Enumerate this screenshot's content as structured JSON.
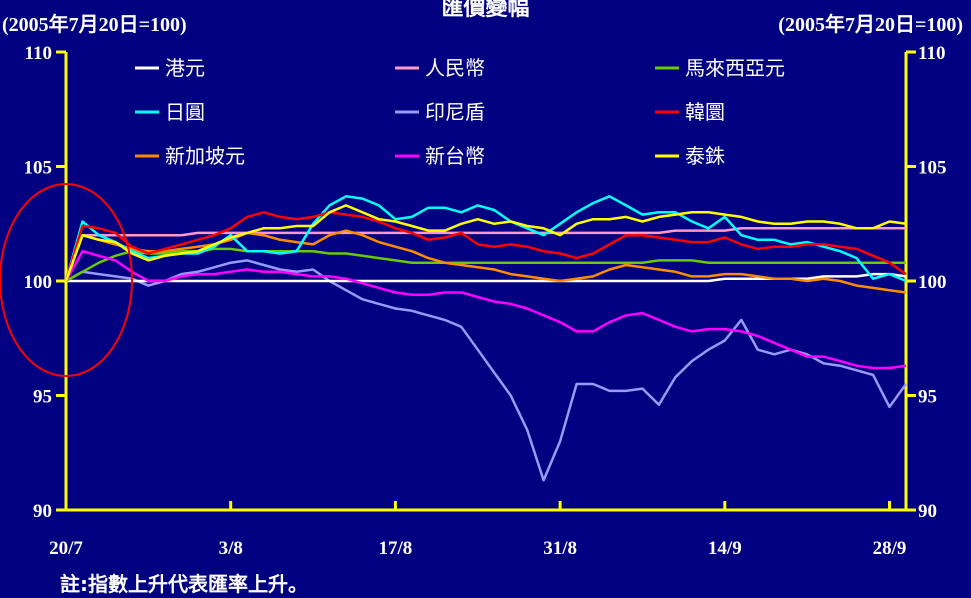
{
  "chart_data": {
    "type": "line",
    "title": "匯價變幅",
    "base_label": "(2005年7月20日=100)",
    "note": "註:指數上升代表匯率上升。",
    "ylim": [
      90,
      110
    ],
    "y_ticks": [
      "90",
      "95",
      "100",
      "105",
      "110"
    ],
    "x_tick_labels": [
      "20/7",
      "3/8",
      "17/8",
      "31/8",
      "14/9",
      "28/9"
    ],
    "x_tick_index": [
      0,
      10,
      20,
      30,
      40,
      50
    ],
    "x_count": 52,
    "grid": false,
    "legend_position": "top",
    "series": [
      {
        "name": "港元",
        "color": "#ffffff",
        "values": [
          100,
          100,
          100,
          100,
          100,
          100,
          100,
          100,
          100,
          100,
          100,
          100,
          100,
          100,
          100,
          100,
          100,
          100,
          100,
          100,
          100,
          100,
          100,
          100,
          100,
          100,
          100,
          100,
          100,
          100,
          100,
          100,
          100,
          100,
          100,
          100,
          100,
          100,
          100,
          100,
          100.1,
          100.1,
          100.1,
          100.1,
          100.1,
          100.1,
          100.2,
          100.2,
          100.2,
          100.3,
          100.3,
          100.2
        ]
      },
      {
        "name": "人民幣",
        "color": "#ff99cc",
        "values": [
          100,
          102,
          102,
          102,
          102,
          102,
          102,
          102,
          102.1,
          102.1,
          102.1,
          102.1,
          102.1,
          102.1,
          102.1,
          102.1,
          102.1,
          102.1,
          102.1,
          102.1,
          102.1,
          102.1,
          102.1,
          102.1,
          102.1,
          102.1,
          102.1,
          102.1,
          102.1,
          102.1,
          102.1,
          102.1,
          102.1,
          102.1,
          102.1,
          102.1,
          102.1,
          102.2,
          102.2,
          102.2,
          102.2,
          102.3,
          102.3,
          102.3,
          102.3,
          102.3,
          102.3,
          102.3,
          102.3,
          102.3,
          102.3,
          102.3
        ]
      },
      {
        "name": "馬來西亞元",
        "color": "#66cc00",
        "values": [
          100,
          100.4,
          100.8,
          101.1,
          101.3,
          101.2,
          101.2,
          101.3,
          101.3,
          101.4,
          101.4,
          101.3,
          101.3,
          101.3,
          101.3,
          101.3,
          101.2,
          101.2,
          101.1,
          101,
          100.9,
          100.8,
          100.8,
          100.8,
          100.8,
          100.8,
          100.8,
          100.8,
          100.8,
          100.8,
          100.8,
          100.8,
          100.8,
          100.8,
          100.8,
          100.8,
          100.9,
          100.9,
          100.9,
          100.8,
          100.8,
          100.8,
          100.8,
          100.8,
          100.8,
          100.8,
          100.8,
          100.8,
          100.8,
          100.8,
          100.8,
          100.8
        ]
      },
      {
        "name": "日圓",
        "color": "#00ffff",
        "values": [
          100,
          102.6,
          102,
          101.7,
          101.3,
          101,
          101.1,
          101.2,
          101.2,
          101.5,
          102,
          101.3,
          101.3,
          101.2,
          101.3,
          102.5,
          103.3,
          103.7,
          103.6,
          103.3,
          102.7,
          102.8,
          103.2,
          103.2,
          103,
          103.3,
          103.1,
          102.6,
          102.3,
          102,
          102.5,
          103,
          103.4,
          103.7,
          103.3,
          102.9,
          103,
          103,
          102.6,
          102.3,
          102.8,
          102,
          101.8,
          101.8,
          101.6,
          101.7,
          101.5,
          101.3,
          101,
          100.1,
          100.3,
          100
        ]
      },
      {
        "name": "印尼盾",
        "color": "#9999ff",
        "values": [
          100,
          100.4,
          100.3,
          100.2,
          100.1,
          99.8,
          100,
          100.3,
          100.4,
          100.6,
          100.8,
          100.9,
          100.7,
          100.5,
          100.4,
          100.5,
          100,
          99.6,
          99.2,
          99,
          98.8,
          98.7,
          98.5,
          98.3,
          98,
          97,
          96,
          95,
          93.5,
          91.3,
          93,
          95.5,
          95.5,
          95.2,
          95.2,
          95.3,
          94.6,
          95.8,
          96.5,
          97,
          97.4,
          98.3,
          97,
          96.8,
          97,
          96.8,
          96.4,
          96.3,
          96.1,
          95.9,
          94.5,
          95.5
        ]
      },
      {
        "name": "韓圜",
        "color": "#ff0000",
        "values": [
          100,
          102.4,
          102.3,
          102.1,
          101.5,
          101.2,
          101.4,
          101.6,
          101.8,
          102,
          102.3,
          102.8,
          103,
          102.8,
          102.7,
          102.8,
          103,
          102.9,
          102.8,
          102.6,
          102.3,
          102.1,
          101.8,
          101.9,
          102.1,
          101.6,
          101.5,
          101.6,
          101.5,
          101.3,
          101.2,
          101,
          101.2,
          101.6,
          102,
          102,
          101.9,
          101.8,
          101.7,
          101.7,
          101.9,
          101.6,
          101.4,
          101.5,
          101.5,
          101.6,
          101.6,
          101.5,
          101.4,
          101.1,
          100.8,
          100.3
        ]
      },
      {
        "name": "新加坡元",
        "color": "#ff8c00",
        "values": [
          100,
          102,
          101.8,
          101.6,
          101.4,
          101.3,
          101.3,
          101.4,
          101.5,
          101.6,
          101.8,
          102.1,
          102,
          101.8,
          101.7,
          101.6,
          102,
          102.2,
          102,
          101.7,
          101.5,
          101.3,
          101,
          100.8,
          100.7,
          100.6,
          100.5,
          100.3,
          100.2,
          100.1,
          100,
          100.1,
          100.2,
          100.5,
          100.7,
          100.6,
          100.5,
          100.4,
          100.2,
          100.2,
          100.3,
          100.3,
          100.2,
          100.1,
          100.1,
          100,
          100.1,
          100,
          99.8,
          99.7,
          99.6,
          99.5
        ]
      },
      {
        "name": "新台幣",
        "color": "#ff00ff",
        "values": [
          100,
          101.3,
          101.1,
          100.9,
          100.4,
          100,
          100,
          100.2,
          100.3,
          100.3,
          100.4,
          100.5,
          100.4,
          100.4,
          100.3,
          100.2,
          100.2,
          100.1,
          99.9,
          99.7,
          99.5,
          99.4,
          99.4,
          99.5,
          99.5,
          99.3,
          99.1,
          99,
          98.8,
          98.5,
          98.2,
          97.8,
          97.8,
          98.2,
          98.5,
          98.6,
          98.3,
          98,
          97.8,
          97.9,
          97.9,
          97.8,
          97.6,
          97.3,
          97,
          96.7,
          96.7,
          96.5,
          96.3,
          96.2,
          96.2,
          96.3
        ]
      },
      {
        "name": "泰銖",
        "color": "#ffff00",
        "values": [
          100,
          102,
          101.8,
          101.7,
          101.2,
          100.9,
          101.1,
          101.2,
          101.3,
          101.6,
          101.9,
          102.1,
          102.3,
          102.3,
          102.4,
          102.4,
          103,
          103.3,
          103,
          102.7,
          102.6,
          102.4,
          102.2,
          102.2,
          102.5,
          102.7,
          102.5,
          102.6,
          102.4,
          102.3,
          102,
          102.5,
          102.7,
          102.7,
          102.8,
          102.6,
          102.8,
          102.9,
          103,
          103,
          102.9,
          102.8,
          102.6,
          102.5,
          102.5,
          102.6,
          102.6,
          102.5,
          102.3,
          102.3,
          102.6,
          102.5
        ]
      }
    ]
  }
}
